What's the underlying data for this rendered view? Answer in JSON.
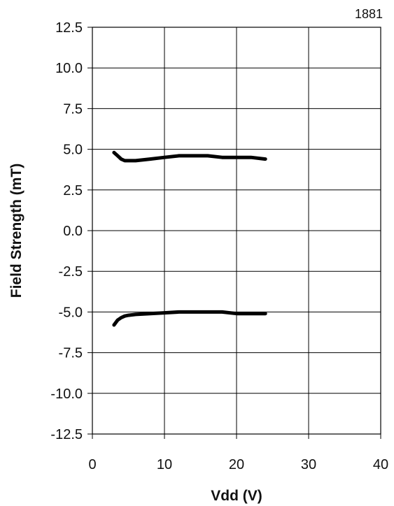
{
  "chart_data": {
    "type": "line",
    "title": "1881",
    "xlabel": "Vdd (V)",
    "ylabel": "Field Strength (mT)",
    "xlim": [
      0,
      40
    ],
    "ylim": [
      -12.5,
      12.5
    ],
    "xticks": [
      0,
      10,
      20,
      30,
      40
    ],
    "yticks": [
      12.5,
      10.0,
      7.5,
      5.0,
      2.5,
      0.0,
      -2.5,
      -5.0,
      -7.5,
      -10.0,
      -12.5
    ],
    "xtick_labels": [
      "0",
      "10",
      "20",
      "30",
      "40"
    ],
    "ytick_labels": [
      "12.5",
      "10.0",
      "7.5",
      "5.0",
      "2.5",
      "0.0",
      "-2.5",
      "-5.0",
      "-7.5",
      "-10.0",
      "-12.5"
    ],
    "grid": true,
    "legend": "none",
    "series": [
      {
        "x": [
          3,
          3.5,
          4,
          4.5,
          5,
          6,
          8,
          10,
          12,
          14,
          16,
          18,
          20,
          22,
          24
        ],
        "y": [
          4.8,
          4.6,
          4.4,
          4.3,
          4.3,
          4.3,
          4.4,
          4.5,
          4.6,
          4.6,
          4.6,
          4.5,
          4.5,
          4.5,
          4.4
        ]
      },
      {
        "x": [
          3,
          3.5,
          4,
          4.5,
          5,
          6,
          8,
          10,
          12,
          14,
          16,
          18,
          20,
          22,
          24
        ],
        "y": [
          -5.8,
          -5.5,
          -5.35,
          -5.25,
          -5.2,
          -5.15,
          -5.1,
          -5.05,
          -5.0,
          -5.0,
          -5.0,
          -5.0,
          -5.1,
          -5.1,
          -5.1
        ]
      }
    ]
  }
}
